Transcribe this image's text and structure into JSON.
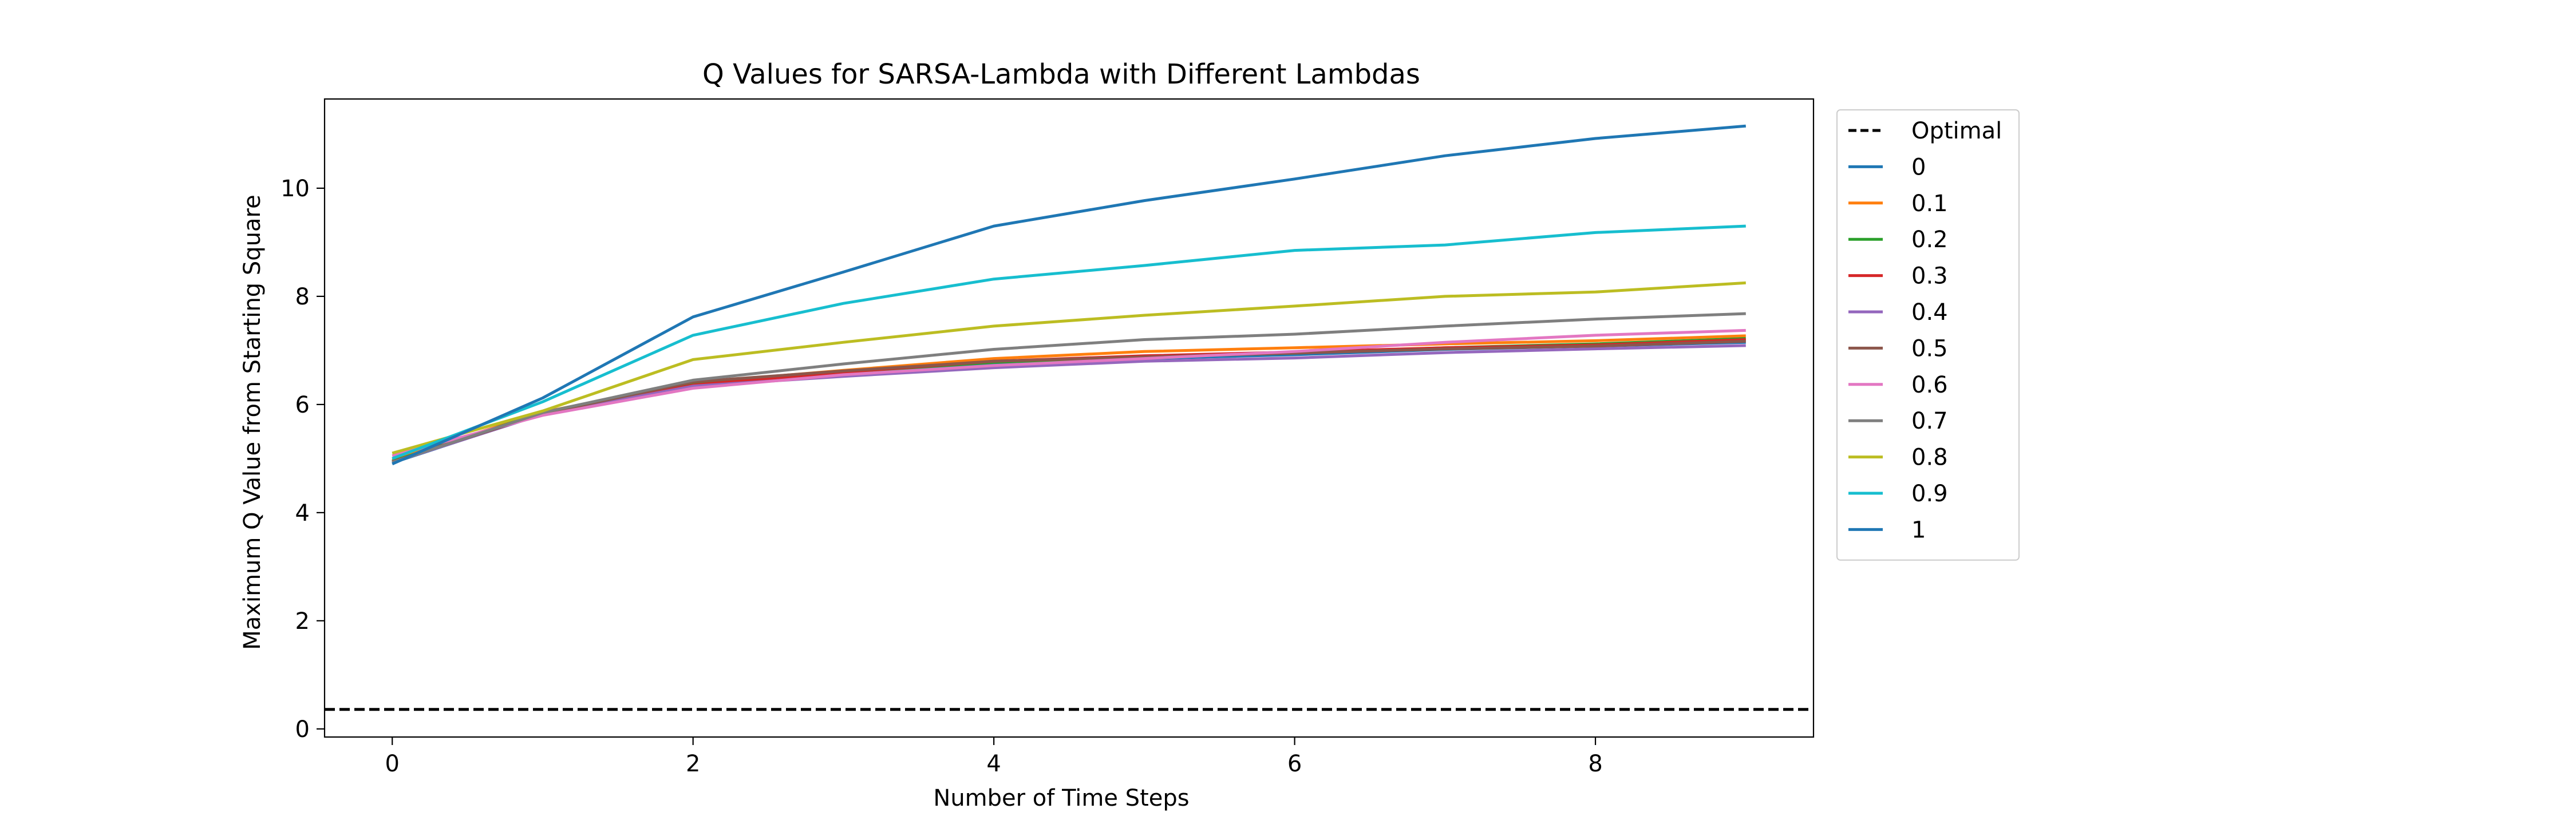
{
  "chart_data": {
    "type": "line",
    "title": "Q Values for SARSA-Lambda with Different Lambdas",
    "xlabel": "Number of Time Steps",
    "ylabel": "Maximum Q Value from Starting Square",
    "xlim": [
      -0.45,
      9.45
    ],
    "ylim": [
      -0.15,
      11.65
    ],
    "xticks": [
      0,
      2,
      4,
      6,
      8
    ],
    "yticks": [
      0,
      2,
      4,
      6,
      8,
      10
    ],
    "grid": false,
    "legend_position": "outside-upper-right",
    "x": [
      0,
      1,
      2,
      3,
      4,
      5,
      6,
      7,
      8,
      9
    ],
    "reference_lines": [
      {
        "name": "Optimal",
        "y": 0.36,
        "color": "#000000",
        "style": "dashed"
      }
    ],
    "series": [
      {
        "name": "0",
        "color": "#1f77b4",
        "values": [
          4.92,
          5.83,
          6.38,
          6.58,
          6.75,
          6.85,
          6.92,
          7.02,
          7.08,
          7.15
        ]
      },
      {
        "name": "0.1",
        "color": "#ff7f0e",
        "values": [
          4.97,
          5.86,
          6.4,
          6.63,
          6.85,
          6.98,
          7.05,
          7.12,
          7.18,
          7.27
        ]
      },
      {
        "name": "0.2",
        "color": "#2ca02c",
        "values": [
          4.95,
          5.85,
          6.38,
          6.6,
          6.78,
          6.88,
          6.95,
          7.05,
          7.12,
          7.22
        ]
      },
      {
        "name": "0.3",
        "color": "#d62728",
        "values": [
          4.94,
          5.84,
          6.36,
          6.6,
          6.8,
          6.9,
          6.97,
          7.05,
          7.1,
          7.2
        ]
      },
      {
        "name": "0.4",
        "color": "#9467bd",
        "values": [
          4.93,
          5.82,
          6.34,
          6.52,
          6.68,
          6.8,
          6.86,
          6.96,
          7.03,
          7.09
        ]
      },
      {
        "name": "0.5",
        "color": "#8c564b",
        "values": [
          4.94,
          5.83,
          6.42,
          6.62,
          6.8,
          6.88,
          6.95,
          7.03,
          7.08,
          7.17
        ]
      },
      {
        "name": "0.6",
        "color": "#e377c2",
        "values": [
          5.05,
          5.8,
          6.3,
          6.55,
          6.72,
          6.85,
          6.98,
          7.15,
          7.28,
          7.37
        ]
      },
      {
        "name": "0.7",
        "color": "#7f7f7f",
        "values": [
          4.93,
          5.85,
          6.45,
          6.75,
          7.02,
          7.2,
          7.3,
          7.45,
          7.58,
          7.68
        ]
      },
      {
        "name": "0.8",
        "color": "#bcbd22",
        "values": [
          5.1,
          5.88,
          6.83,
          7.15,
          7.45,
          7.65,
          7.82,
          8.0,
          8.08,
          8.25
        ]
      },
      {
        "name": "0.9",
        "color": "#17becf",
        "values": [
          5.0,
          6.05,
          7.28,
          7.87,
          8.32,
          8.57,
          8.85,
          8.95,
          9.18,
          9.3
        ]
      },
      {
        "name": "1",
        "color": "#1f77b4",
        "values": [
          4.9,
          6.12,
          7.62,
          8.45,
          9.3,
          9.77,
          10.17,
          10.6,
          10.92,
          11.15
        ]
      }
    ]
  }
}
